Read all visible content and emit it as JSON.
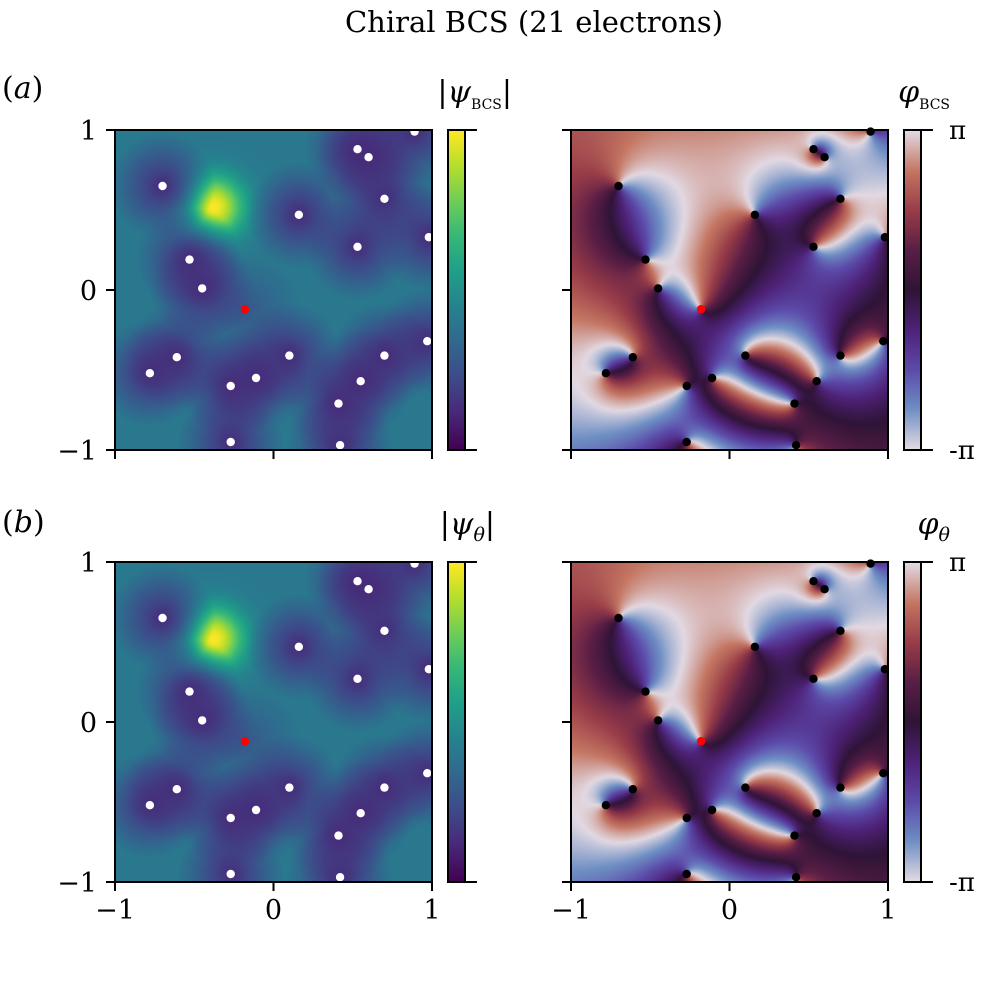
{
  "chart_data": {
    "title": "Chiral BCS (21 electrons)",
    "type": "heatmap",
    "x_range": [
      -1,
      1
    ],
    "y_range": [
      -1,
      1
    ],
    "x_ticks": [
      "−1",
      "0",
      "1"
    ],
    "y_ticks": [
      "1",
      "0",
      "−1"
    ],
    "electron_positions": [
      [
        0.89,
        0.99
      ],
      [
        0.53,
        0.88
      ],
      [
        0.6,
        0.83
      ],
      [
        -0.7,
        0.65
      ],
      [
        0.7,
        0.57
      ],
      [
        0.16,
        0.47
      ],
      [
        0.98,
        0.33
      ],
      [
        0.53,
        0.27
      ],
      [
        -0.53,
        0.19
      ],
      [
        -0.45,
        0.01
      ],
      [
        0.1,
        -0.41
      ],
      [
        0.7,
        -0.41
      ],
      [
        0.97,
        -0.32
      ],
      [
        -0.78,
        -0.52
      ],
      [
        -0.11,
        -0.55
      ],
      [
        0.55,
        -0.57
      ],
      [
        -0.27,
        -0.6
      ],
      [
        0.41,
        -0.71
      ],
      [
        -0.27,
        -0.95
      ],
      [
        0.42,
        -0.97
      ],
      [
        -0.61,
        -0.42
      ]
    ],
    "reference_point": [
      -0.18,
      -0.12
    ],
    "amplitude_peak": [
      -0.38,
      0.52
    ],
    "panels": [
      {
        "row": "(a)",
        "kind": "amplitude",
        "colorbar_label": "|ψBCS|",
        "subscript": "BCS",
        "colormap": "viridis",
        "colorbar_ticks": []
      },
      {
        "row": "",
        "kind": "phase",
        "colorbar_label": "φBCS",
        "subscript": "BCS",
        "colormap": "twilight",
        "colorbar_ticks": [
          "π",
          "-π"
        ]
      },
      {
        "row": "(b)",
        "kind": "amplitude",
        "colorbar_label": "|ψθ|",
        "subscript": "θ",
        "colormap": "viridis",
        "colorbar_ticks": []
      },
      {
        "row": "",
        "kind": "phase",
        "colorbar_label": "φθ",
        "subscript": "θ",
        "colormap": "twilight",
        "colorbar_ticks": [
          "π",
          "-π"
        ]
      }
    ],
    "colors": {
      "electron_on_amplitude": "#ffffff",
      "electron_on_phase": "#000000",
      "reference": "#ff0000"
    }
  }
}
